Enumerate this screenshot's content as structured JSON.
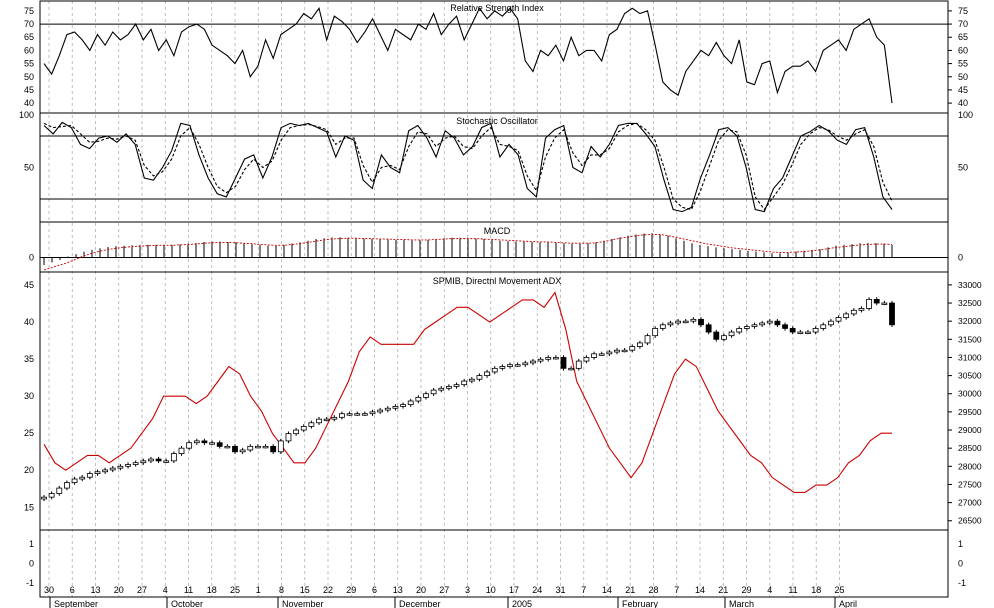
{
  "chart_data": [
    {
      "type": "line",
      "title": "Relative Strength Index",
      "ylim": [
        37,
        78
      ],
      "yticks": [
        40,
        45,
        50,
        55,
        60,
        65,
        70,
        75
      ],
      "reference_lines": [
        70
      ],
      "series": [
        {
          "color": "#000000",
          "values": [
            55,
            51,
            58,
            66,
            67,
            64,
            60,
            66,
            62,
            67,
            64,
            66,
            70,
            64,
            68,
            60,
            64,
            58,
            67,
            69,
            70,
            68,
            62,
            60,
            58,
            55,
            60,
            50,
            54,
            64,
            57,
            66,
            68,
            70,
            74,
            72,
            76,
            64,
            73,
            71,
            68,
            63,
            67,
            72,
            66,
            60,
            68,
            66,
            64,
            70,
            68,
            74,
            66,
            70,
            73,
            64,
            70,
            76,
            72,
            75,
            73,
            76,
            72,
            56,
            52,
            60,
            58,
            62,
            56,
            65,
            58,
            60,
            60,
            56,
            66,
            68,
            74,
            76,
            74,
            75,
            62,
            48,
            45,
            43,
            52,
            56,
            60,
            58,
            63,
            58,
            55,
            64,
            48,
            47,
            55,
            56,
            44,
            52,
            54,
            54,
            56,
            52,
            60,
            62,
            64,
            60,
            68,
            70,
            72,
            65,
            62,
            40
          ]
        }
      ]
    },
    {
      "type": "line",
      "title": "Stochastic Oscillator",
      "ylim": [
        0,
        100
      ],
      "yticks": [
        50,
        100
      ],
      "reference_lines": [
        80,
        20
      ],
      "series": [
        {
          "color": "#000000",
          "style": "solid",
          "values": [
            90,
            82,
            93,
            88,
            72,
            68,
            78,
            80,
            74,
            82,
            72,
            40,
            38,
            50,
            66,
            92,
            90,
            62,
            40,
            25,
            22,
            40,
            58,
            62,
            40,
            60,
            88,
            92,
            90,
            92,
            88,
            84,
            60,
            80,
            76,
            38,
            30,
            62,
            50,
            45,
            85,
            90,
            78,
            60,
            85,
            78,
            62,
            70,
            88,
            92,
            60,
            72,
            62,
            30,
            22,
            78,
            86,
            90,
            50,
            45,
            70,
            60,
            72,
            90,
            92,
            92,
            82,
            70,
            38,
            10,
            8,
            12,
            40,
            62,
            86,
            88,
            80,
            50,
            10,
            8,
            30,
            40,
            60,
            80,
            84,
            90,
            85,
            76,
            72,
            86,
            88,
            60,
            22,
            10
          ]
        },
        {
          "color": "#000000",
          "style": "dashed",
          "values": [
            92,
            88,
            89,
            90,
            82,
            74,
            75,
            78,
            77,
            80,
            76,
            52,
            42,
            46,
            58,
            80,
            88,
            72,
            50,
            32,
            26,
            32,
            48,
            58,
            50,
            56,
            76,
            88,
            90,
            91,
            89,
            86,
            72,
            78,
            78,
            52,
            36,
            50,
            52,
            48,
            70,
            84,
            82,
            70,
            78,
            80,
            70,
            68,
            80,
            88,
            72,
            70,
            66,
            42,
            28,
            60,
            78,
            86,
            64,
            52,
            62,
            62,
            68,
            84,
            90,
            92,
            86,
            76,
            50,
            20,
            12,
            10,
            28,
            52,
            76,
            86,
            84,
            62,
            22,
            10,
            22,
            34,
            52,
            72,
            82,
            88,
            86,
            80,
            76,
            82,
            86,
            70,
            36,
            18
          ]
        }
      ]
    },
    {
      "type": "bar",
      "title": "MACD",
      "ylim": [
        -30,
        80
      ],
      "yticks": [
        0
      ],
      "series": [
        {
          "name": "histogram",
          "color": "#000000",
          "values": [
            -18,
            -12,
            -6,
            2,
            8,
            14,
            18,
            22,
            25,
            27,
            28,
            29,
            30,
            30,
            30,
            30,
            30,
            31,
            33,
            35,
            37,
            38,
            38,
            37,
            36,
            34,
            32,
            30,
            28,
            28,
            30,
            33,
            36,
            40,
            44,
            46,
            48,
            48,
            47,
            46,
            45,
            44,
            44,
            43,
            42,
            42,
            41,
            41,
            42,
            44,
            46,
            47,
            47,
            46,
            45,
            44,
            42,
            40,
            39,
            38,
            38,
            37,
            36,
            36,
            35,
            34,
            33,
            33,
            34,
            36,
            40,
            44,
            48,
            52,
            55,
            57,
            58,
            56,
            52,
            46,
            40,
            34,
            30,
            27,
            24,
            22,
            20,
            18,
            16,
            14,
            12,
            10,
            10,
            12,
            14,
            16,
            18,
            20,
            24,
            28,
            30,
            32,
            34,
            35,
            34,
            33,
            30
          ]
        },
        {
          "name": "signal",
          "color": "#cc0000",
          "values": [
            -30,
            -24,
            -18,
            -12,
            -4,
            4,
            10,
            15,
            19,
            22,
            24,
            26,
            27,
            28,
            29,
            29,
            29,
            30,
            31,
            32,
            34,
            35,
            36,
            36,
            35,
            34,
            33,
            31,
            30,
            29,
            29,
            31,
            33,
            36,
            39,
            42,
            44,
            45,
            46,
            46,
            45,
            45,
            44,
            44,
            43,
            43,
            42,
            42,
            42,
            43,
            44,
            45,
            45,
            45,
            45,
            44,
            43,
            42,
            41,
            40,
            39,
            38,
            37,
            37,
            36,
            35,
            34,
            34,
            34,
            35,
            38,
            42,
            46,
            49,
            52,
            54,
            55,
            55,
            52,
            48,
            44,
            40,
            36,
            32,
            29,
            26,
            23,
            21,
            19,
            17,
            15,
            13,
            12,
            12,
            13,
            14,
            16,
            18,
            21,
            24,
            26,
            28,
            30,
            31,
            32,
            32,
            31
          ]
        }
      ]
    },
    {
      "type": "candlestick",
      "title": "SPMIB, Directnl Movement ADX",
      "ylim": [
        26300,
        33300
      ],
      "yticks_right": [
        26500,
        27000,
        27500,
        28000,
        28500,
        29000,
        29500,
        30000,
        30500,
        31000,
        31500,
        32000,
        32500,
        33000
      ],
      "ylim_left": [
        12.2,
        46.5
      ],
      "yticks_left": [
        15,
        20,
        25,
        30,
        35,
        40,
        45
      ],
      "price_values": [
        27150,
        27250,
        27400,
        27550,
        27650,
        27700,
        27800,
        27850,
        27900,
        27950,
        28000,
        28050,
        28100,
        28150,
        28200,
        28150,
        28150,
        28350,
        28500,
        28650,
        28700,
        28650,
        28650,
        28550,
        28550,
        28400,
        28450,
        28550,
        28550,
        28550,
        28400,
        28700,
        28900,
        29000,
        29100,
        29200,
        29300,
        29300,
        29350,
        29450,
        29450,
        29450,
        29450,
        29500,
        29550,
        29600,
        29650,
        29700,
        29800,
        29900,
        30000,
        30100,
        30150,
        30200,
        30250,
        30350,
        30400,
        30500,
        30600,
        30700,
        30750,
        30800,
        30800,
        30850,
        30900,
        30950,
        31000,
        31000,
        30700,
        30700,
        30900,
        31000,
        31100,
        31100,
        31150,
        31200,
        31200,
        31300,
        31400,
        31600,
        31800,
        31900,
        31950,
        32000,
        32000,
        32050,
        31900,
        31700,
        31500,
        31600,
        31700,
        31800,
        31850,
        31900,
        31950,
        32000,
        31900,
        31800,
        31700,
        31700,
        31700,
        31800,
        31900,
        32000,
        32100,
        32200,
        32300,
        32350,
        32600,
        32500,
        32500,
        31900
      ],
      "series": [
        {
          "name": "ADX",
          "color": "#cc0000",
          "values": [
            23.5,
            21,
            20,
            21,
            22,
            22,
            21,
            22,
            23,
            25,
            27,
            30,
            30,
            30,
            29,
            30,
            32,
            34,
            33,
            30,
            28,
            25,
            23,
            21,
            21,
            23,
            26,
            29,
            32,
            36,
            38,
            37,
            37,
            37,
            37,
            39,
            40,
            41,
            42,
            42,
            41,
            40,
            41,
            42,
            43,
            43,
            42,
            44,
            39,
            32,
            29,
            26,
            23,
            21,
            19,
            21,
            25,
            29,
            33,
            35,
            34,
            31,
            28,
            26,
            24,
            22,
            21,
            19,
            18,
            17,
            17,
            18,
            18,
            19,
            21,
            22,
            24,
            25,
            25
          ]
        }
      ]
    }
  ],
  "x_axis": {
    "day_labels": [
      "30",
      "6",
      "13",
      "20",
      "27",
      "4",
      "11",
      "18",
      "25",
      "1",
      "8",
      "15",
      "22",
      "29",
      "6",
      "13",
      "20",
      "27",
      "3",
      "10",
      "17",
      "24",
      "31",
      "7",
      "14",
      "21",
      "28",
      "7",
      "14",
      "21",
      "29",
      "4",
      "11",
      "18",
      "25"
    ],
    "month_labels": [
      "September",
      "October",
      "November",
      "December",
      "2005",
      "February",
      "March",
      "April"
    ]
  }
}
